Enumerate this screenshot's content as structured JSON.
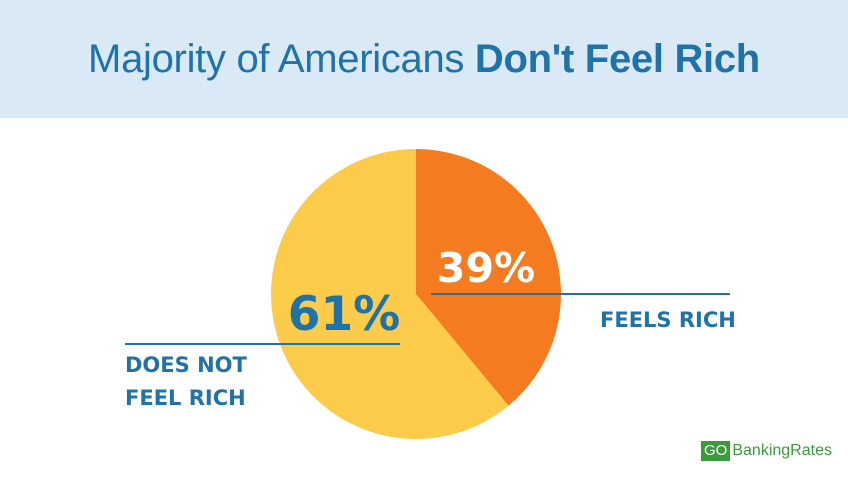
{
  "header": {
    "title_light": "Majority of Americans ",
    "title_bold": "Don't Feel Rich"
  },
  "chart_data": {
    "type": "pie",
    "title": "Majority of Americans Don't Feel Rich",
    "slices": [
      {
        "label_lines": [
          "FEELS RICH"
        ],
        "value": 39,
        "value_label": "39%",
        "color": "#f47b20"
      },
      {
        "label_lines": [
          "DOES NOT",
          "FEEL RICH"
        ],
        "value": 61,
        "value_label": "61%",
        "color": "#fdcb4a"
      }
    ],
    "start_angle_deg": 0,
    "direction": "clockwise",
    "label_color": "#1f73a8",
    "inner_value_color": "#ffffff"
  },
  "logo": {
    "go": "GO",
    "rest": "BankingRates",
    "color": "#3a9a3c"
  }
}
